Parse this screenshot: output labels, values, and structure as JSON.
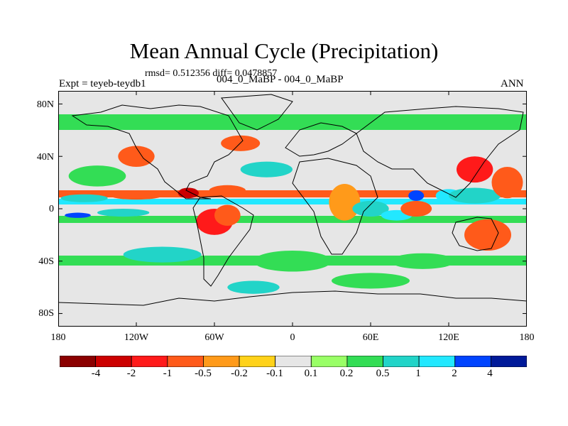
{
  "header": {
    "title": "Mean Annual Cycle (Precipitation)",
    "stats": "rmsd= 0.512356 diff= 0.0478857",
    "experiment": "Expt = teyeb-teydb1",
    "case": "004_0_MaBP - 004_0_MaBP",
    "season": "ANN"
  },
  "axes": {
    "lat_labels": [
      "80N",
      "40N",
      "0",
      "40S",
      "80S"
    ],
    "lat_values": [
      80,
      40,
      0,
      -40,
      -80
    ],
    "lon_labels": [
      "180",
      "120W",
      "60W",
      "0",
      "60E",
      "120E",
      "180"
    ],
    "lon_values": [
      -180,
      -120,
      -60,
      0,
      60,
      120,
      180
    ],
    "lat_range": [
      -90,
      90
    ],
    "lon_range": [
      -180,
      180
    ]
  },
  "colorbar": {
    "levels": [
      "-4",
      "-2",
      "-1",
      "-0.5",
      "-0.2",
      "-0.1",
      "0.1",
      "0.2",
      "0.5",
      "1",
      "2",
      "4"
    ],
    "colors": [
      "#8b0000",
      "#cc0000",
      "#ff1a1a",
      "#ff5a1a",
      "#ff9a1a",
      "#ffd21a",
      "#e6e6e6",
      "#99ff66",
      "#33dd55",
      "#22d4c8",
      "#22e8ff",
      "#0044ff",
      "#001a99"
    ]
  },
  "map_data": {
    "type": "filled-contour",
    "variable": "precipitation difference",
    "background_color": "#e6e6e6",
    "features": [
      {
        "lon": -160,
        "lat": 8,
        "level": 9,
        "rlon": 18,
        "rlat": 3
      },
      {
        "lon": -120,
        "lat": 10,
        "level": 3,
        "rlon": 20,
        "rlat": 3
      },
      {
        "lon": -80,
        "lat": 12,
        "level": 1,
        "rlon": 8,
        "rlat": 4
      },
      {
        "lon": -50,
        "lat": 14,
        "level": 3,
        "rlon": 14,
        "rlat": 4
      },
      {
        "lon": -165,
        "lat": -5,
        "level": 11,
        "rlon": 10,
        "rlat": 2
      },
      {
        "lon": -130,
        "lat": -3,
        "level": 9,
        "rlon": 20,
        "rlat": 3
      },
      {
        "lon": -60,
        "lat": -10,
        "level": 2,
        "rlon": 14,
        "rlat": 10
      },
      {
        "lon": -50,
        "lat": -5,
        "level": 3,
        "rlon": 10,
        "rlat": 8
      },
      {
        "lon": -150,
        "lat": 25,
        "level": 8,
        "rlon": 22,
        "rlat": 8
      },
      {
        "lon": -120,
        "lat": 40,
        "level": 3,
        "rlon": 14,
        "rlat": 8
      },
      {
        "lon": -40,
        "lat": 50,
        "level": 3,
        "rlon": 15,
        "rlat": 6
      },
      {
        "lon": -20,
        "lat": 30,
        "level": 9,
        "rlon": 20,
        "rlat": 6
      },
      {
        "lon": 40,
        "lat": 5,
        "level": 4,
        "rlon": 12,
        "rlat": 14
      },
      {
        "lon": 60,
        "lat": 0,
        "level": 9,
        "rlon": 14,
        "rlat": 6
      },
      {
        "lon": 80,
        "lat": -5,
        "level": 10,
        "rlon": 12,
        "rlat": 4
      },
      {
        "lon": 95,
        "lat": 0,
        "level": 3,
        "rlon": 12,
        "rlat": 6
      },
      {
        "lon": 95,
        "lat": 10,
        "level": 11,
        "rlon": 6,
        "rlat": 4
      },
      {
        "lon": 120,
        "lat": 10,
        "level": 10,
        "rlon": 10,
        "rlat": 5
      },
      {
        "lon": 140,
        "lat": 30,
        "level": 2,
        "rlon": 14,
        "rlat": 10
      },
      {
        "lon": 140,
        "lat": 10,
        "level": 9,
        "rlon": 20,
        "rlat": 6
      },
      {
        "lon": 150,
        "lat": -20,
        "level": 3,
        "rlon": 18,
        "rlat": 12
      },
      {
        "lon": 165,
        "lat": 20,
        "level": 3,
        "rlon": 12,
        "rlat": 12
      },
      {
        "lon": -100,
        "lat": -35,
        "level": 9,
        "rlon": 30,
        "rlat": 6
      },
      {
        "lon": 0,
        "lat": -40,
        "level": 8,
        "rlon": 30,
        "rlat": 8
      },
      {
        "lon": 100,
        "lat": -40,
        "level": 8,
        "rlon": 25,
        "rlat": 6
      },
      {
        "lon": -30,
        "lat": -60,
        "level": 9,
        "rlon": 20,
        "rlat": 5
      },
      {
        "lon": 60,
        "lat": -55,
        "level": 8,
        "rlon": 30,
        "rlat": 6
      }
    ]
  }
}
